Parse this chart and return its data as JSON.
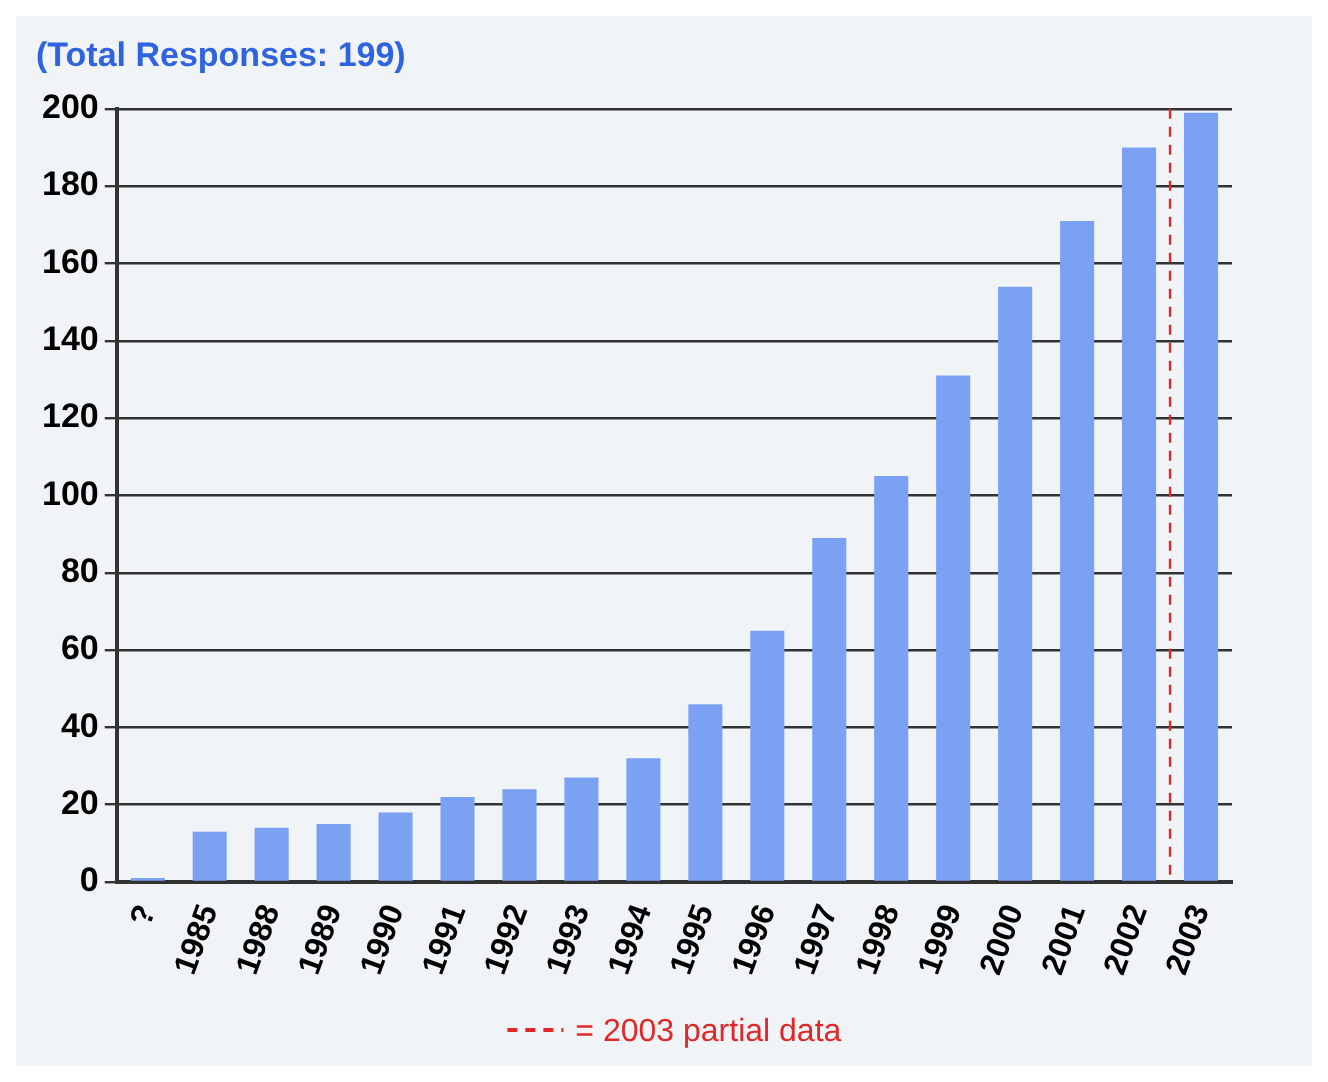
{
  "chart_data": {
    "type": "bar",
    "title": "(Total Responses: 199)",
    "categories": [
      "?",
      "1985",
      "1988",
      "1989",
      "1990",
      "1991",
      "1992",
      "1993",
      "1994",
      "1995",
      "1996",
      "1997",
      "1998",
      "1999",
      "2000",
      "2001",
      "2002",
      "2003"
    ],
    "values": [
      1,
      13,
      14,
      15,
      18,
      22,
      24,
      27,
      32,
      46,
      65,
      89,
      105,
      131,
      154,
      171,
      190,
      199
    ],
    "color": "#7ba1f2",
    "ylim": [
      0,
      200
    ],
    "yticks": [
      0,
      20,
      40,
      60,
      80,
      100,
      120,
      140,
      160,
      180,
      200
    ],
    "grid": "y",
    "legend": "bottom",
    "ref_lines": [
      {
        "axis": "x",
        "value": "2003",
        "label": "= 2003 partial data",
        "color": "#e02828",
        "line_style": "dashed"
      }
    ]
  }
}
